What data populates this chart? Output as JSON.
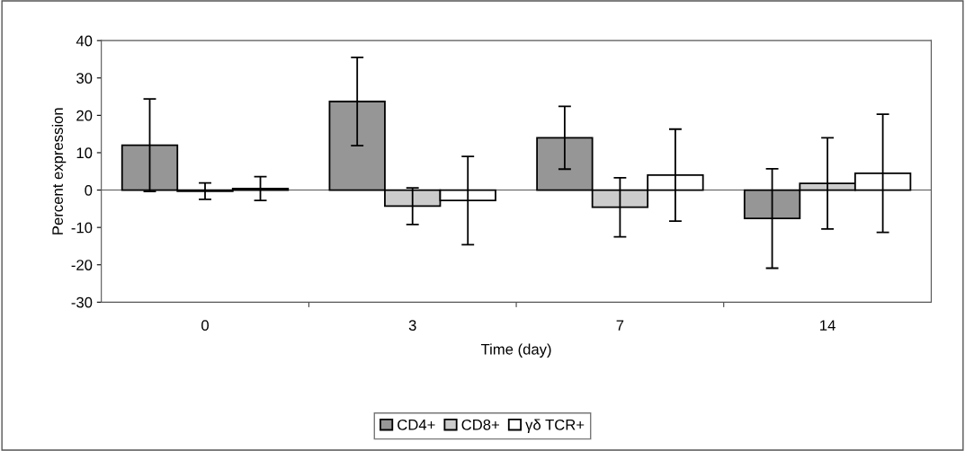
{
  "chart_data": {
    "type": "bar",
    "xlabel": "Time (day)",
    "ylabel": "Percent expression",
    "categories": [
      "0",
      "3",
      "7",
      "14"
    ],
    "series": [
      {
        "name": "CD4+",
        "color": "#969696",
        "values": [
          12,
          23.7,
          14,
          -7.6
        ],
        "errors": [
          12.4,
          11.8,
          8.4,
          13.3
        ]
      },
      {
        "name": "CD8+",
        "color": "#cccccc",
        "values": [
          -0.3,
          -4.3,
          -4.6,
          1.8
        ],
        "errors": [
          2.2,
          4.9,
          7.9,
          12.2
        ]
      },
      {
        "name": "γδ TCR+",
        "color": "#ffffff",
        "values": [
          0.4,
          -2.8,
          4,
          4.5
        ],
        "errors": [
          3.2,
          11.8,
          12.3,
          15.8
        ]
      }
    ],
    "ylim": [
      -30,
      40
    ],
    "yticks": [
      -30,
      -20,
      -10,
      0,
      10,
      20,
      30,
      40
    ],
    "ref_lines": [
      {
        "axis": "y",
        "value": 0,
        "color": "#555555"
      }
    ],
    "legend": "bottom"
  }
}
